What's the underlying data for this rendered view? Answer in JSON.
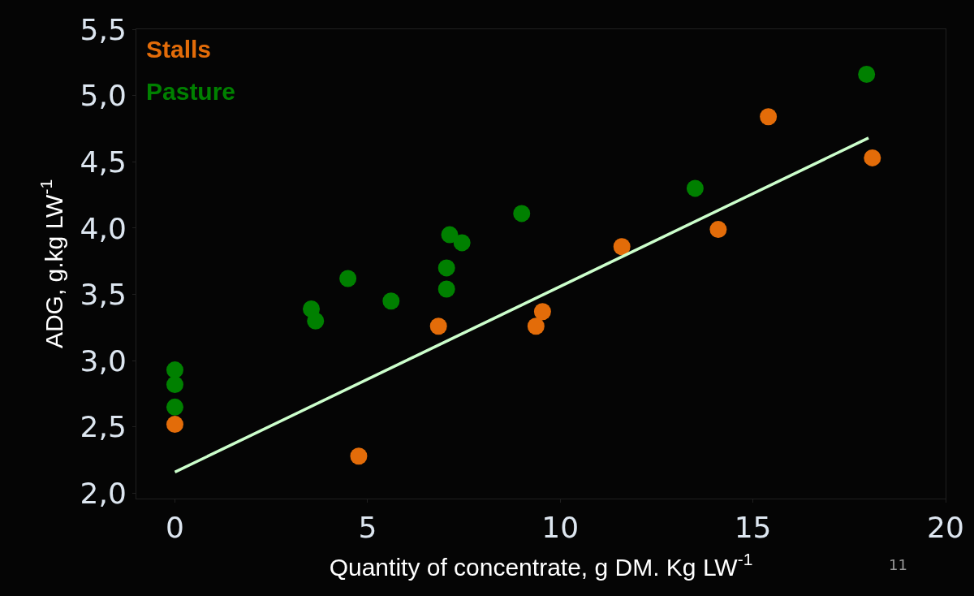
{
  "chart_data": {
    "type": "scatter",
    "xlabel": "Quantity of concentrate, g DM. Kg LW$^{-1}$",
    "ylabel": "ADG, g.kg LW$^{-1}$",
    "xlim": [
      -1,
      20
    ],
    "xticks": [
      0,
      5,
      10,
      15,
      20
    ],
    "ylim": [
      1.96,
      5.5
    ],
    "yticks": [
      {
        "value": 2.0,
        "label": "2,0"
      },
      {
        "value": 2.5,
        "label": "2,5"
      },
      {
        "value": 3.0,
        "label": "3,0"
      },
      {
        "value": 3.5,
        "label": "3,5"
      },
      {
        "value": 4.0,
        "label": "4,0"
      },
      {
        "value": 4.5,
        "label": "4,5"
      },
      {
        "value": 5.0,
        "label": "5,0"
      },
      {
        "value": 5.5,
        "label": "5,5"
      }
    ],
    "grid": false,
    "legend": "top left",
    "marker": "circle",
    "series": [
      {
        "name": "Stalls",
        "color": "#e36c09",
        "x": [
          0,
          4.77,
          6.84,
          9.37,
          9.54,
          11.6,
          14.1,
          15.4,
          18.1
        ],
        "values": [
          2.52,
          2.28,
          3.26,
          3.26,
          3.37,
          3.86,
          3.99,
          4.84,
          4.53
        ]
      },
      {
        "name": "Pasture",
        "color": "#008000",
        "x": [
          0,
          0,
          0,
          3.54,
          3.65,
          4.49,
          5.61,
          7.05,
          7.05,
          7.13,
          7.45,
          9.0,
          13.5,
          17.95
        ],
        "values": [
          2.93,
          2.82,
          2.65,
          3.39,
          3.3,
          3.62,
          3.45,
          3.7,
          3.54,
          3.95,
          3.89,
          4.11,
          4.3,
          5.16
        ]
      },
      {
        "type": "line",
        "color": "#ccffcc",
        "x": [
          0,
          18.0
        ],
        "values": [
          2.16,
          4.68
        ],
        "marker": "none"
      }
    ],
    "annotations": [
      "11"
    ]
  }
}
